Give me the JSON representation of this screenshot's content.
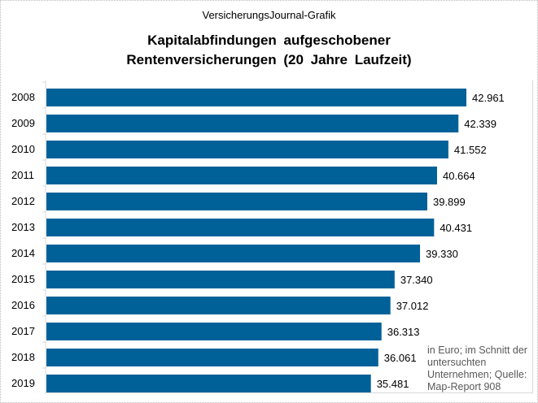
{
  "chart_data": {
    "type": "bar",
    "orientation": "horizontal",
    "source_label": "VersicherungsJournal-Grafik",
    "title_line1": "Kapitalabfindungen aufgeschobener",
    "title_line2": "Rentenversicherungen (20 Jahre Laufzeit)",
    "categories": [
      "2008",
      "2009",
      "2010",
      "2011",
      "2012",
      "2013",
      "2014",
      "2015",
      "2016",
      "2017",
      "2018",
      "2019"
    ],
    "values": [
      42961,
      42339,
      41552,
      40664,
      39899,
      40431,
      39330,
      37340,
      37012,
      36313,
      36061,
      35481
    ],
    "data_labels": [
      "42.961",
      "42.339",
      "41.552",
      "40.664",
      "39.899",
      "40.431",
      "39.330",
      "37.340",
      "37.012",
      "36.313",
      "36.061",
      "35.481"
    ],
    "xlim": [
      10000,
      45000
    ],
    "grid": false,
    "bar_color": "#006199",
    "note": "in Euro; im Schnitt der untersuchten Unternehmen; Quelle: Map-Report 908"
  }
}
